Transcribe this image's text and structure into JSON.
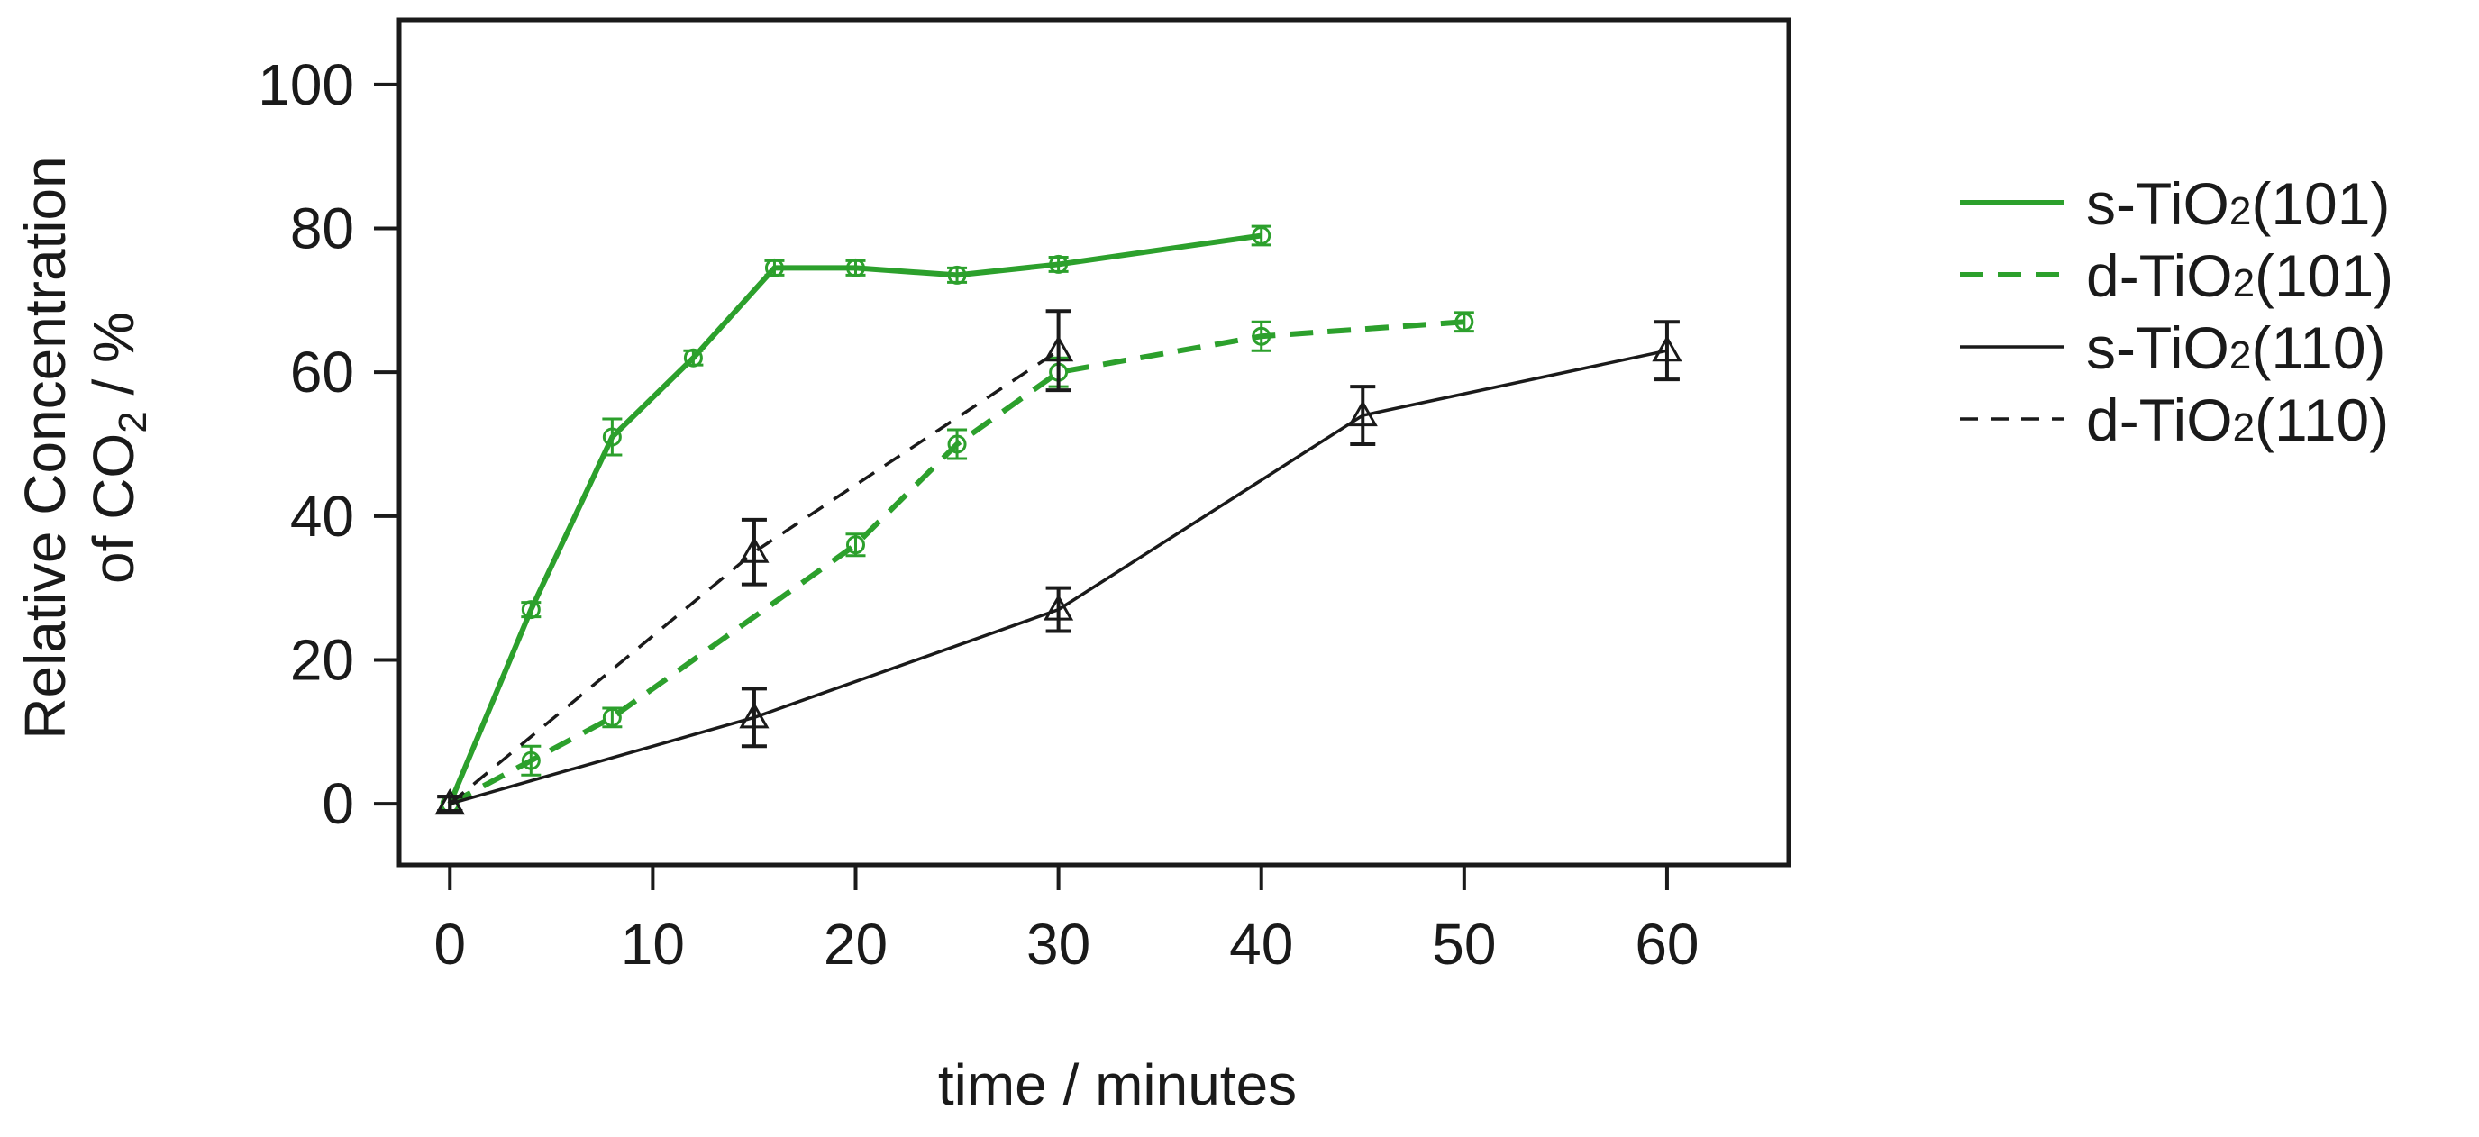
{
  "chart_data": {
    "type": "line",
    "title": "",
    "xlabel": "time / minutes",
    "ylabel_line1": "Relative Concentration",
    "ylabel_line2_prefix": "of CO",
    "ylabel_line2_sub": "2",
    "ylabel_line2_suffix": "  / %",
    "xlim": [
      -2.5,
      66
    ],
    "ylim": [
      -8.5,
      109
    ],
    "xticks": [
      0,
      10,
      20,
      30,
      40,
      50,
      60
    ],
    "yticks": [
      0,
      20,
      40,
      60,
      80,
      100
    ],
    "legend_position": "right",
    "series": [
      {
        "name": "s-TiO2(101)",
        "label_prefix": "s-TiO",
        "label_sub": "2",
        "label_suffix": "(101)",
        "color": "#2ca02c",
        "dash": "solid",
        "marker": "circle",
        "width": "bold",
        "x": [
          0,
          4,
          8,
          12,
          16,
          20,
          25,
          30,
          40
        ],
        "y": [
          0,
          27,
          51,
          62,
          74.5,
          74.5,
          73.5,
          75,
          79
        ],
        "err": [
          1,
          1,
          2.5,
          1,
          1,
          1,
          1,
          1,
          1.3
        ]
      },
      {
        "name": "d-TiO2(101)",
        "label_prefix": "d-TiO",
        "label_sub": "2",
        "label_suffix": "(101)",
        "color": "#2ca02c",
        "dash": "dashed",
        "marker": "circle",
        "width": "bold",
        "x": [
          0,
          4,
          8,
          20,
          25,
          30,
          40,
          50
        ],
        "y": [
          0,
          6,
          12,
          36,
          50,
          60,
          65,
          67
        ],
        "err": [
          1,
          2,
          1.3,
          1.5,
          2,
          2,
          2,
          1.3
        ]
      },
      {
        "name": "s-TiO2(110)",
        "label_prefix": "s-TiO",
        "label_sub": "2",
        "label_suffix": "(110)",
        "color": "#1a1a1a",
        "dash": "solid",
        "marker": "triangle",
        "width": "thin",
        "x": [
          0,
          15,
          30,
          45,
          60
        ],
        "y": [
          0,
          12,
          27,
          54,
          63
        ],
        "err": [
          1,
          4,
          3,
          4,
          4
        ]
      },
      {
        "name": "d-TiO2(110)",
        "label_prefix": "d-TiO",
        "label_sub": "2",
        "label_suffix": "(110)",
        "color": "#1a1a1a",
        "dash": "dashed",
        "marker": "triangle",
        "width": "thin",
        "x": [
          0,
          15,
          30
        ],
        "y": [
          0,
          35,
          63
        ],
        "err": [
          1,
          4.5,
          5.5
        ]
      }
    ]
  }
}
